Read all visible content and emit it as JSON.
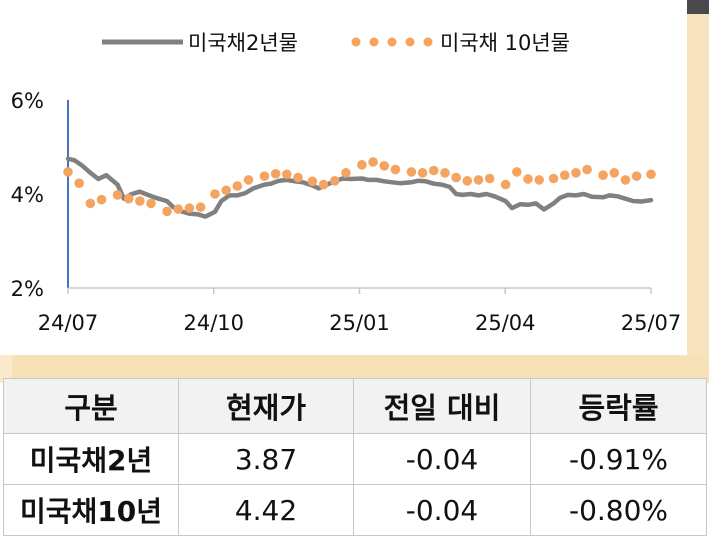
{
  "chart_data": {
    "type": "line",
    "title": "",
    "xlabel": "",
    "ylabel": "",
    "ylim": [
      2,
      6
    ],
    "y_ticks": [
      "2%",
      "4%",
      "6%"
    ],
    "x_ticks": [
      "24/07",
      "24/10",
      "25/01",
      "25/04",
      "25/07"
    ],
    "legend_position": "top",
    "grid": false,
    "series": [
      {
        "name": "미국채2년물",
        "style": "line",
        "color": "#808080",
        "x": [
          "2024-07-01",
          "2024-07-05",
          "2024-07-10",
          "2024-07-15",
          "2024-07-20",
          "2024-07-25",
          "2024-08-01",
          "2024-08-05",
          "2024-08-10",
          "2024-08-15",
          "2024-08-20",
          "2024-08-25",
          "2024-09-01",
          "2024-09-05",
          "2024-09-10",
          "2024-09-15",
          "2024-09-20",
          "2024-09-25",
          "2024-10-01",
          "2024-10-05",
          "2024-10-10",
          "2024-10-15",
          "2024-10-20",
          "2024-10-25",
          "2024-11-01",
          "2024-11-05",
          "2024-11-10",
          "2024-11-15",
          "2024-11-20",
          "2024-11-25",
          "2024-12-01",
          "2024-12-05",
          "2024-12-10",
          "2024-12-15",
          "2024-12-20",
          "2024-12-25",
          "2025-01-01",
          "2025-01-05",
          "2025-01-10",
          "2025-01-15",
          "2025-01-20",
          "2025-01-25",
          "2025-02-01",
          "2025-02-05",
          "2025-02-10",
          "2025-02-15",
          "2025-02-20",
          "2025-02-25",
          "2025-03-01",
          "2025-03-05",
          "2025-03-10",
          "2025-03-15",
          "2025-03-20",
          "2025-03-25",
          "2025-04-01",
          "2025-04-05",
          "2025-04-10",
          "2025-04-15",
          "2025-04-20",
          "2025-04-25",
          "2025-05-01",
          "2025-05-05",
          "2025-05-10",
          "2025-05-15",
          "2025-05-20",
          "2025-05-25",
          "2025-06-01",
          "2025-06-05",
          "2025-06-10",
          "2025-06-15",
          "2025-06-20",
          "2025-06-25",
          "2025-07-01"
        ],
        "values": [
          4.75,
          4.72,
          4.6,
          4.45,
          4.32,
          4.4,
          4.2,
          3.9,
          4.0,
          4.05,
          3.98,
          3.92,
          3.85,
          3.72,
          3.63,
          3.58,
          3.57,
          3.52,
          3.62,
          3.85,
          3.97,
          3.97,
          4.02,
          4.12,
          4.2,
          4.22,
          4.28,
          4.3,
          4.27,
          4.25,
          4.18,
          4.12,
          4.2,
          4.27,
          4.33,
          4.32,
          4.33,
          4.3,
          4.3,
          4.27,
          4.25,
          4.23,
          4.25,
          4.28,
          4.27,
          4.22,
          4.2,
          4.15,
          4.0,
          3.98,
          4.0,
          3.97,
          4.0,
          3.95,
          3.85,
          3.7,
          3.78,
          3.77,
          3.8,
          3.67,
          3.8,
          3.92,
          3.98,
          3.97,
          4.0,
          3.94,
          3.93,
          3.97,
          3.95,
          3.9,
          3.85,
          3.84,
          3.87
        ]
      },
      {
        "name": "미국채 10년물",
        "style": "dots",
        "color": "#f4a460",
        "x": [
          "2024-07-01",
          "2024-07-08",
          "2024-07-15",
          "2024-07-22",
          "2024-08-01",
          "2024-08-08",
          "2024-08-15",
          "2024-08-22",
          "2024-09-01",
          "2024-09-08",
          "2024-09-15",
          "2024-09-22",
          "2024-10-01",
          "2024-10-08",
          "2024-10-15",
          "2024-10-22",
          "2024-11-01",
          "2024-11-08",
          "2024-11-15",
          "2024-11-22",
          "2024-12-01",
          "2024-12-08",
          "2024-12-15",
          "2024-12-22",
          "2025-01-01",
          "2025-01-08",
          "2025-01-15",
          "2025-01-22",
          "2025-02-01",
          "2025-02-08",
          "2025-02-15",
          "2025-02-22",
          "2025-03-01",
          "2025-03-08",
          "2025-03-15",
          "2025-03-22",
          "2025-04-01",
          "2025-04-08",
          "2025-04-15",
          "2025-04-22",
          "2025-05-01",
          "2025-05-08",
          "2025-05-15",
          "2025-05-22",
          "2025-06-01",
          "2025-06-08",
          "2025-06-15",
          "2025-06-22",
          "2025-07-01"
        ],
        "values": [
          4.47,
          4.23,
          3.8,
          3.88,
          3.98,
          3.9,
          3.85,
          3.8,
          3.63,
          3.68,
          3.7,
          3.72,
          4.0,
          4.08,
          4.17,
          4.3,
          4.38,
          4.43,
          4.42,
          4.35,
          4.27,
          4.2,
          4.28,
          4.45,
          4.62,
          4.68,
          4.6,
          4.52,
          4.47,
          4.45,
          4.5,
          4.45,
          4.35,
          4.28,
          4.3,
          4.33,
          4.2,
          4.47,
          4.32,
          4.3,
          4.33,
          4.4,
          4.45,
          4.52,
          4.4,
          4.45,
          4.3,
          4.38,
          4.42
        ]
      }
    ]
  },
  "table": {
    "headers": [
      "구분",
      "현재가",
      "전일 대비",
      "등락률"
    ],
    "rows": [
      {
        "label": "미국채2년",
        "price": "3.87",
        "change": "-0.04",
        "rate": "-0.91%"
      },
      {
        "label": "미국채10년",
        "price": "4.42",
        "change": "-0.04",
        "rate": "-0.80%"
      }
    ]
  }
}
